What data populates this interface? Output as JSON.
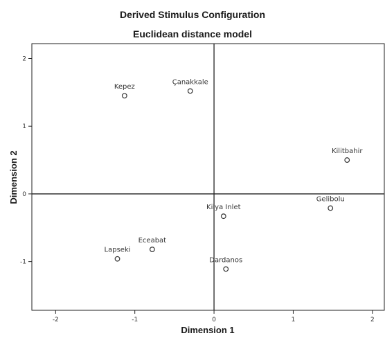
{
  "chart_data": {
    "type": "scatter",
    "title": "Derived Stimulus Configuration",
    "subtitle": "Euclidean distance model",
    "xlabel": "Dimension 1",
    "ylabel": "Dimension 2",
    "xlim": [
      -2.3,
      2.15
    ],
    "ylim": [
      -1.72,
      2.22
    ],
    "xticks": [
      -2,
      -1,
      0,
      1,
      2
    ],
    "yticks": [
      -1,
      0,
      1,
      2
    ],
    "xtick_labels": [
      "-2",
      "-1",
      "0",
      "1",
      "2"
    ],
    "ytick_labels": [
      "-1",
      "0",
      "1",
      "2"
    ],
    "points": [
      {
        "label": "Kepez",
        "x": -1.13,
        "y": 1.45
      },
      {
        "label": "Çanakkale",
        "x": -0.3,
        "y": 1.52
      },
      {
        "label": "Kilitbahir",
        "x": 1.68,
        "y": 0.5
      },
      {
        "label": "Gelibolu",
        "x": 1.47,
        "y": -0.21
      },
      {
        "label": "Kilya Inlet",
        "x": 0.12,
        "y": -0.33
      },
      {
        "label": "Eceabat",
        "x": -0.78,
        "y": -0.82
      },
      {
        "label": "Lapseki",
        "x": -1.22,
        "y": -0.96
      },
      {
        "label": "Dardanos",
        "x": 0.15,
        "y": -1.11
      }
    ],
    "grid": false,
    "legend": "none"
  }
}
